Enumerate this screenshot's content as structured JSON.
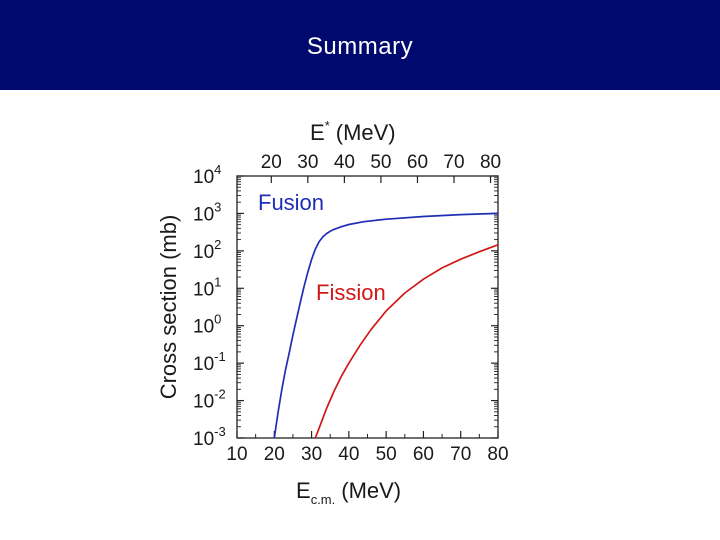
{
  "slide": {
    "title": "Summary",
    "header_bg": "#000a6e"
  },
  "chart_data": {
    "type": "line",
    "xlabel_main": "E",
    "xlabel_sub": "c.m.",
    "xlabel_unit": "(MeV)",
    "top_xlabel_main": "E",
    "top_xlabel_sup": "*",
    "top_xlabel_unit": "(MeV)",
    "ylabel": "Cross section (mb)",
    "xlim": [
      10,
      80
    ],
    "x_ticks": [
      "10",
      "20",
      "30",
      "40",
      "50",
      "60",
      "70",
      "80"
    ],
    "top_x_ticks": [
      {
        "label": "20",
        "x_cm": 19.2
      },
      {
        "label": "30",
        "x_cm": 29.0
      },
      {
        "label": "40",
        "x_cm": 38.8
      },
      {
        "label": "50",
        "x_cm": 48.6
      },
      {
        "label": "60",
        "x_cm": 58.4
      },
      {
        "label": "70",
        "x_cm": 68.2
      },
      {
        "label": "80",
        "x_cm": 78.0
      }
    ],
    "y_scale": "log",
    "ylim_exp": [
      -3,
      4
    ],
    "y_ticks": [
      {
        "base": "10",
        "exp": "4"
      },
      {
        "base": "10",
        "exp": "3"
      },
      {
        "base": "10",
        "exp": "2"
      },
      {
        "base": "10",
        "exp": "1"
      },
      {
        "base": "10",
        "exp": "0"
      },
      {
        "base": "10",
        "exp": "-1"
      },
      {
        "base": "10",
        "exp": "-2"
      },
      {
        "base": "10",
        "exp": "-3"
      }
    ],
    "series": [
      {
        "name": "Fusion",
        "color": "#1f2fb5",
        "x": [
          20.0,
          21,
          22,
          23,
          24,
          25,
          26,
          27,
          28,
          29,
          30,
          31,
          32,
          33,
          34,
          35,
          36,
          38,
          40,
          44,
          50,
          60,
          70,
          80
        ],
        "y": [
          0.001,
          0.0047,
          0.0188,
          0.0658,
          0.188,
          0.56,
          1.58,
          4.3,
          11.3,
          26.9,
          59.2,
          111,
          174,
          236,
          290,
          333,
          374,
          443,
          506,
          600,
          700,
          830,
          930,
          1000
        ]
      },
      {
        "name": "Fission",
        "color": "#d01818",
        "x": [
          31.0,
          32,
          34,
          36,
          38,
          40,
          43,
          46,
          50,
          55,
          60,
          65,
          70,
          75,
          80
        ],
        "y": [
          0.001,
          0.0018,
          0.0061,
          0.0175,
          0.0447,
          0.1,
          0.3,
          0.8,
          2.47,
          7.5,
          17.5,
          35,
          60,
          95,
          145
        ]
      }
    ]
  }
}
